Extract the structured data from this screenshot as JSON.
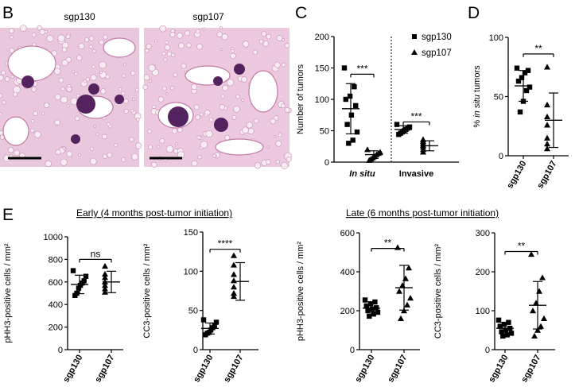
{
  "panel_labels": {
    "B": "B",
    "C": "C",
    "D": "D",
    "E": "E"
  },
  "micrographs": [
    {
      "label": "sgp130",
      "tissue_color": "#e9c8dd",
      "nodule_color": "#54235f"
    },
    {
      "label": "sgp107",
      "tissue_color": "#ecc9de",
      "nodule_color": "#54235f"
    }
  ],
  "section_titles": {
    "early": "Early (4 months post-tumor initiation)",
    "late": "Late (6 months post-tumor initiation)"
  },
  "chart_data": [
    {
      "id": "C",
      "type": "scatter",
      "ylabel": "Number of tumors",
      "ylim": [
        0,
        200
      ],
      "yticks": [
        "0",
        "50",
        "100",
        "150",
        "200"
      ],
      "categories": [
        "In situ",
        "Invasive"
      ],
      "legend": {
        "placement": "top-right",
        "entries": [
          {
            "name": "sgp130",
            "marker": "square"
          },
          {
            "name": "sgp107",
            "marker": "triangle"
          }
        ]
      },
      "groups": [
        {
          "category": "In situ",
          "series": "sgp130",
          "marker": "square",
          "mean": 85,
          "sd": 40,
          "points": [
            150,
            120,
            105,
            100,
            90,
            75,
            60,
            48,
            35,
            30
          ]
        },
        {
          "category": "In situ",
          "series": "sgp107",
          "marker": "triangle",
          "mean": 12,
          "sd": 6,
          "points": [
            20,
            16,
            14,
            12,
            9,
            7,
            5,
            3
          ]
        },
        {
          "category": "Invasive",
          "series": "sgp130",
          "marker": "square",
          "mean": 52,
          "sd": 6,
          "points": [
            60,
            56,
            54,
            52,
            50,
            48,
            46,
            44
          ]
        },
        {
          "category": "Invasive",
          "series": "sgp107",
          "marker": "triangle",
          "mean": 26,
          "sd": 8,
          "points": [
            36,
            33,
            30,
            27,
            24,
            20,
            16
          ]
        }
      ],
      "significance": [
        {
          "category": "In situ",
          "label": "***",
          "y": 140
        },
        {
          "category": "Invasive",
          "label": "***",
          "y": 64
        }
      ]
    },
    {
      "id": "D",
      "type": "scatter",
      "ylabel": "% in situ tumors",
      "ylim": [
        0,
        100
      ],
      "yticks": [
        "0",
        "50",
        "100"
      ],
      "categories": [
        "sgp130",
        "sgp107"
      ],
      "groups": [
        {
          "category": "sgp130",
          "marker": "square",
          "mean": 59,
          "sd": 13,
          "points": [
            74,
            72,
            70,
            66,
            63,
            58,
            55,
            46,
            37
          ]
        },
        {
          "category": "sgp107",
          "marker": "triangle",
          "mean": 30,
          "sd": 23,
          "points": [
            75,
            43,
            33,
            26,
            15,
            10,
            6
          ]
        }
      ],
      "significance": [
        {
          "label": "**",
          "y": 86
        }
      ]
    },
    {
      "id": "E1",
      "type": "scatter",
      "ylabel": "pHH3-positive cells / mm²",
      "ylim": [
        0,
        1000
      ],
      "yticks": [
        "0",
        "200",
        "400",
        "600",
        "800",
        "1000"
      ],
      "categories": [
        "sgp130",
        "sgp107"
      ],
      "groups": [
        {
          "category": "sgp130",
          "marker": "square",
          "mean": 578,
          "sd": 82,
          "points": [
            700,
            650,
            610,
            590,
            570,
            545,
            500,
            480
          ]
        },
        {
          "category": "sgp107",
          "marker": "triangle",
          "mean": 600,
          "sd": 95,
          "points": [
            740,
            670,
            640,
            600,
            570,
            540,
            510
          ]
        }
      ],
      "significance": [
        {
          "label": "ns",
          "y": 800
        }
      ]
    },
    {
      "id": "E2",
      "type": "scatter",
      "ylabel": "CC3-positive cells / mm²",
      "ylim": [
        0,
        150
      ],
      "yticks": [
        "0",
        "50",
        "100",
        "150"
      ],
      "categories": [
        "sgp130",
        "sgp107"
      ],
      "groups": [
        {
          "category": "sgp130",
          "marker": "square",
          "mean": 27,
          "sd": 7,
          "points": [
            38,
            35,
            31,
            28,
            25,
            22,
            21,
            19
          ]
        },
        {
          "category": "sgp107",
          "marker": "triangle",
          "mean": 87,
          "sd": 24,
          "points": [
            120,
            108,
            96,
            88,
            80,
            72,
            68
          ]
        }
      ],
      "significance": [
        {
          "label": "****",
          "y": 128
        }
      ]
    },
    {
      "id": "E3",
      "type": "scatter",
      "ylabel": "pHH3-positive cells / mm²",
      "ylim": [
        0,
        600
      ],
      "yticks": [
        "0",
        "200",
        "400",
        "600"
      ],
      "categories": [
        "sgp130",
        "sgp107"
      ],
      "groups": [
        {
          "category": "sgp130",
          "marker": "square",
          "mean": 213,
          "sd": 33,
          "points": [
            255,
            245,
            235,
            225,
            215,
            208,
            200,
            192,
            183,
            172
          ]
        },
        {
          "category": "sgp107",
          "marker": "triangle",
          "mean": 318,
          "sd": 115,
          "points": [
            525,
            420,
            365,
            330,
            300,
            265,
            230,
            200,
            160
          ]
        }
      ],
      "significance": [
        {
          "label": "**",
          "y": 520
        }
      ]
    },
    {
      "id": "E4",
      "type": "scatter",
      "ylabel": "CC3-positive cells / mm²",
      "ylim": [
        0,
        300
      ],
      "yticks": [
        "0",
        "100",
        "200",
        "300"
      ],
      "categories": [
        "sgp130",
        "sgp107"
      ],
      "groups": [
        {
          "category": "sgp130",
          "marker": "square",
          "mean": 55,
          "sd": 15,
          "points": [
            76,
            70,
            65,
            60,
            55,
            50,
            46,
            42,
            38,
            35
          ]
        },
        {
          "category": "sgp107",
          "marker": "triangle",
          "mean": 114,
          "sd": 61,
          "points": [
            245,
            185,
            150,
            120,
            100,
            80,
            60,
            50,
            35
          ]
        }
      ],
      "significance": [
        {
          "label": "**",
          "y": 252
        }
      ]
    }
  ]
}
